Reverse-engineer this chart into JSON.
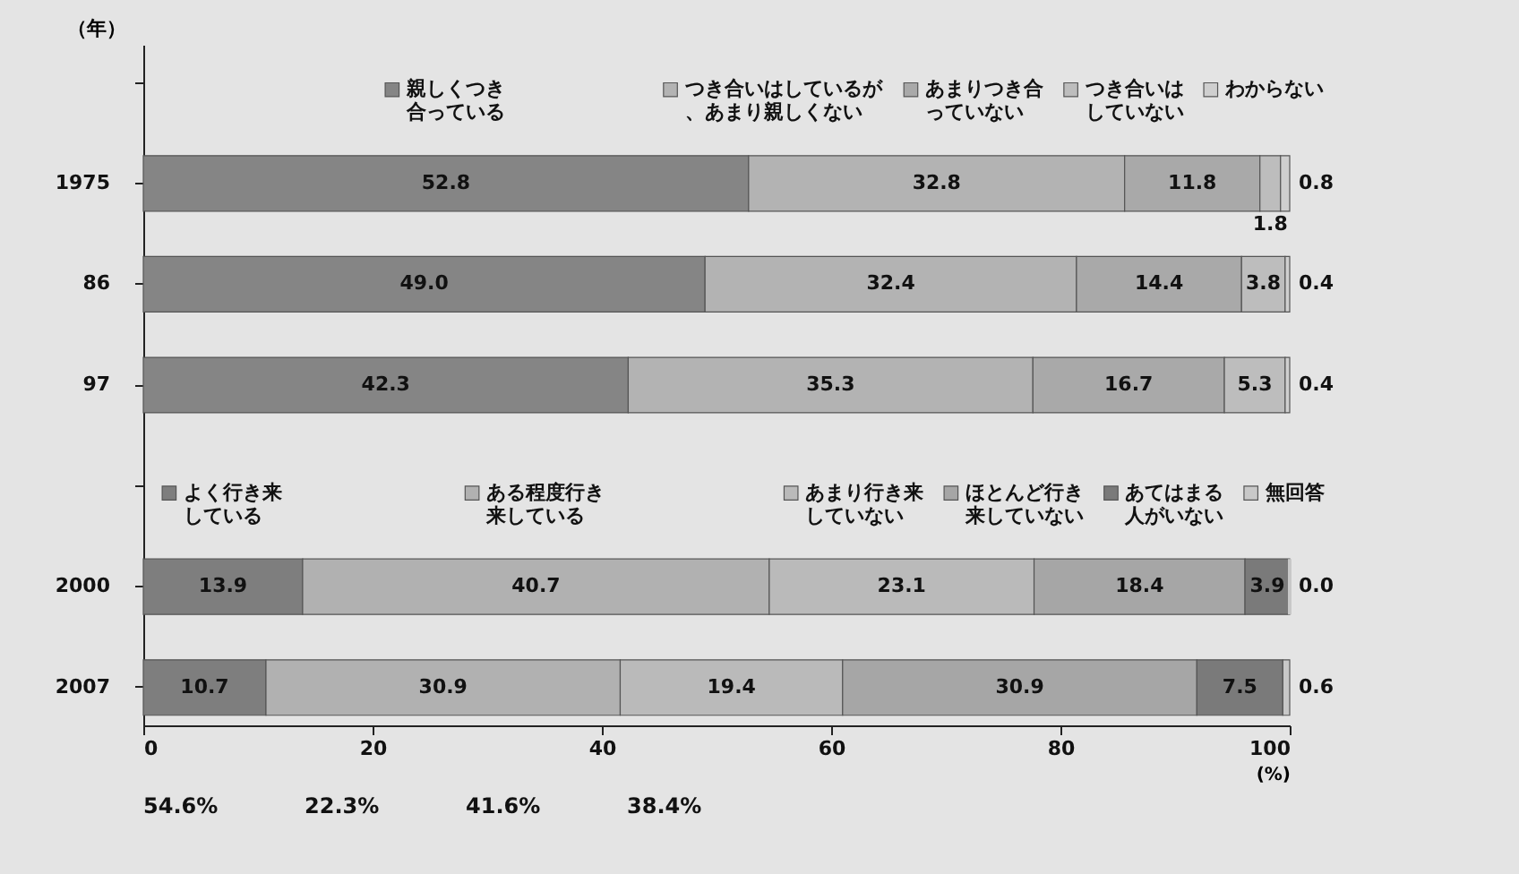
{
  "chart_data": {
    "type": "bar",
    "orientation": "horizontal",
    "stacked": true,
    "legend": "top",
    "grid": false,
    "ylabel": "（年）",
    "xlabel": "(%)",
    "categories": [
      "1975",
      "86",
      "97",
      "2000",
      "2007"
    ],
    "xlim": [
      0,
      100
    ],
    "xticks": [
      0,
      20,
      40,
      60,
      80,
      100
    ],
    "series": [
      {
        "name": "親しくつき合っている",
        "color": "#858585",
        "values": [
          52.8,
          49.0,
          42.3,
          null,
          null
        ],
        "value_labels": [
          "52.8",
          "49.0",
          "42.3",
          null,
          null
        ]
      },
      {
        "name": "つき合いはしているが、あまり親しくない",
        "color": "#b3b3b3",
        "values": [
          32.8,
          32.4,
          35.3,
          null,
          null
        ],
        "value_labels": [
          "32.8",
          "32.4",
          "35.3",
          null,
          null
        ]
      },
      {
        "name": "あまりつき合っていない",
        "color": "#a9a9a9",
        "values": [
          11.8,
          14.4,
          16.7,
          null,
          null
        ],
        "value_labels": [
          "11.8",
          "14.4",
          "16.7",
          null,
          null
        ]
      },
      {
        "name": "つき合いはしていない",
        "color": "#bdbdbd",
        "values": [
          1.8,
          3.8,
          5.3,
          null,
          null
        ],
        "value_labels": [
          "1.8",
          "3.8",
          "5.3",
          null,
          null
        ]
      },
      {
        "name": "わからない",
        "color": "#cfcfcf",
        "values": [
          0.8,
          0.4,
          0.4,
          null,
          null
        ],
        "value_labels": [
          "0.8",
          "0.4",
          "0.4",
          null,
          null
        ]
      },
      {
        "name": "よく行き来している",
        "color": "#7e7e7e",
        "values": [
          null,
          null,
          null,
          13.9,
          10.7
        ],
        "value_labels": [
          null,
          null,
          null,
          "13.9",
          "10.7"
        ]
      },
      {
        "name": "ある程度行き来している",
        "color": "#b1b1b1",
        "values": [
          null,
          null,
          null,
          40.7,
          30.9
        ],
        "value_labels": [
          null,
          null,
          null,
          "40.7",
          "30.9"
        ]
      },
      {
        "name": "あまり行き来していない",
        "color": "#bababa",
        "values": [
          null,
          null,
          null,
          23.1,
          19.4
        ],
        "value_labels": [
          null,
          null,
          null,
          "23.1",
          "19.4"
        ]
      },
      {
        "name": "ほとんど行き来していない",
        "color": "#a6a6a6",
        "values": [
          null,
          null,
          null,
          18.4,
          30.9
        ],
        "value_labels": [
          null,
          null,
          null,
          "18.4",
          "30.9"
        ]
      },
      {
        "name": "あてはまる人がいない",
        "color": "#7a7a7a",
        "values": [
          null,
          null,
          null,
          3.9,
          7.5
        ],
        "value_labels": [
          null,
          null,
          null,
          "3.9",
          "7.5"
        ]
      },
      {
        "name": "無回答",
        "color": "#c8c8c8",
        "values": [
          null,
          null,
          null,
          0.0,
          0.6
        ],
        "value_labels": [
          null,
          null,
          null,
          "0.0",
          "0.6"
        ]
      }
    ],
    "annotations": [
      "54.6%",
      "22.3%",
      "41.6%",
      "38.4%"
    ]
  }
}
